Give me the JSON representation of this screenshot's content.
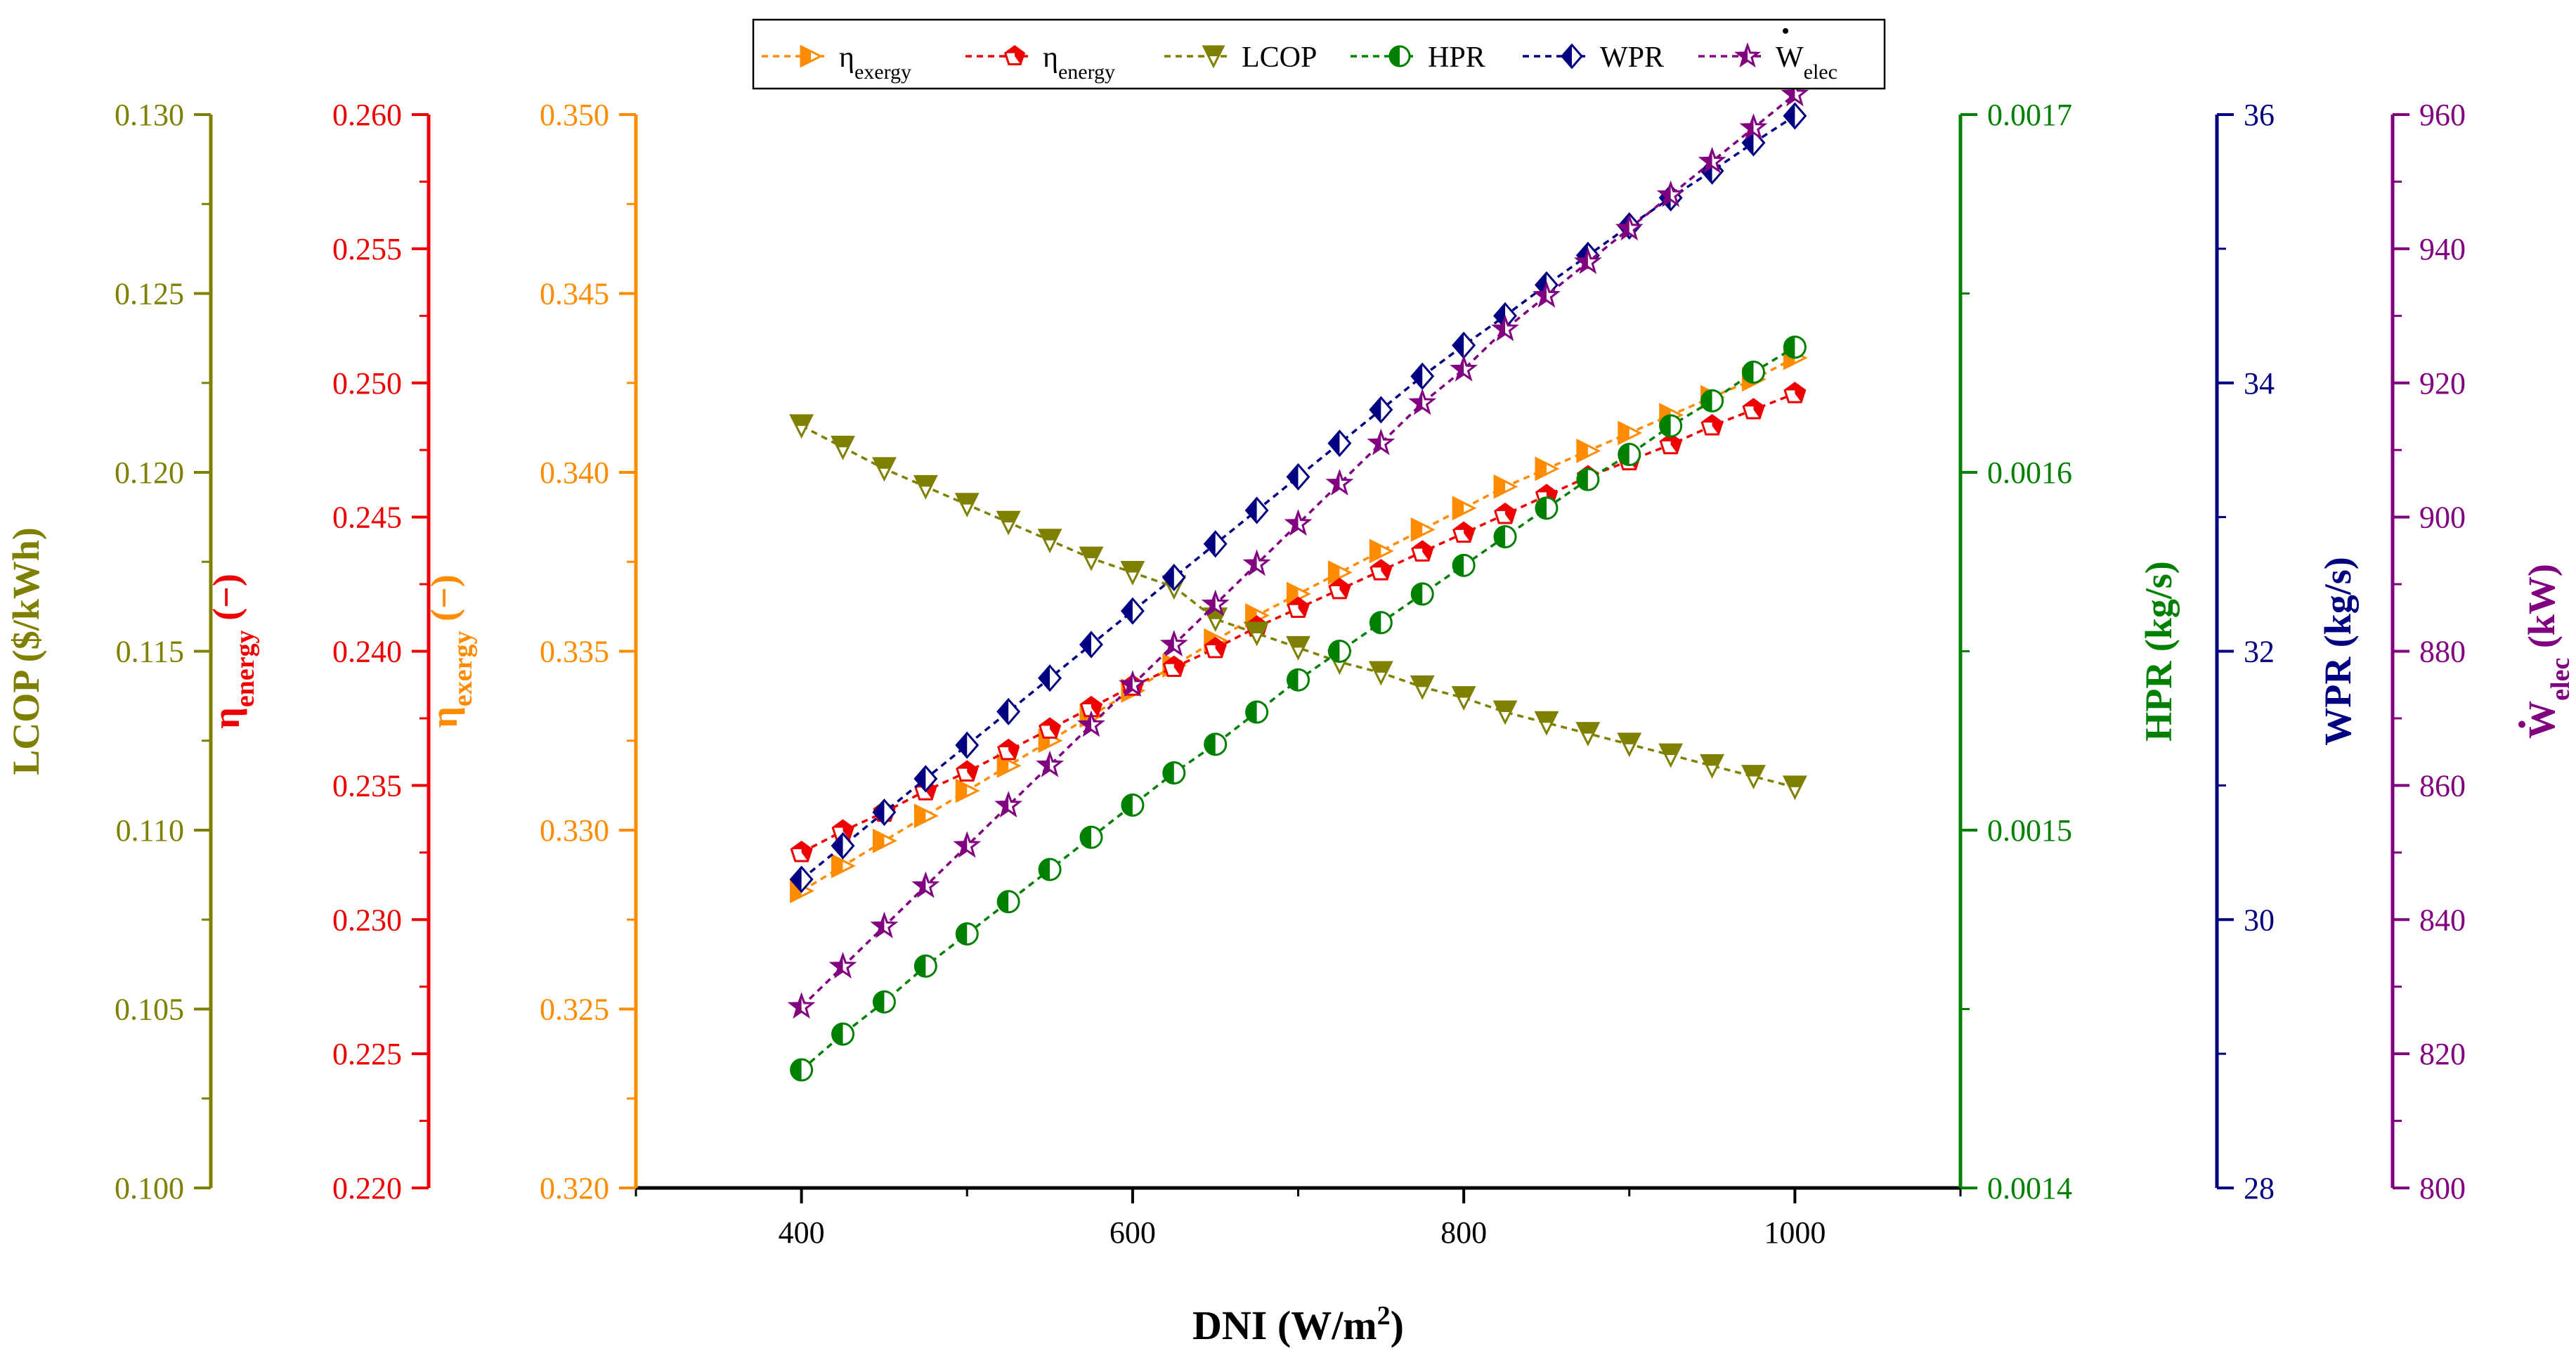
{
  "chart_data": {
    "type": "line",
    "x": [
      400,
      425,
      450,
      475,
      500,
      525,
      550,
      575,
      600,
      625,
      650,
      675,
      700,
      725,
      750,
      775,
      800,
      825,
      850,
      875,
      900,
      925,
      950,
      975,
      1000
    ],
    "xlim": [
      300,
      1100
    ],
    "x_ticks": [
      "400",
      "600",
      "800",
      "1000"
    ],
    "xlabel": {
      "main": "DNI (W/m",
      "sup": "2",
      "end": ")"
    },
    "grid": false,
    "legend_position": "top",
    "axes": [
      {
        "id": "lcop",
        "color": "#808000",
        "side": "left",
        "label": {
          "main": "LCOP ($/kWh)",
          "sub": ""
        },
        "ylim": [
          0.1,
          0.13
        ],
        "ticks": [
          "0.100",
          "0.105",
          "0.110",
          "0.115",
          "0.120",
          "0.125",
          "0.130"
        ]
      },
      {
        "id": "energy",
        "color": "#ee0000",
        "side": "left",
        "label": {
          "main": "η",
          "sub": "energy",
          "end": " (−)"
        },
        "ylim": [
          0.22,
          0.26
        ],
        "ticks": [
          "0.220",
          "0.225",
          "0.230",
          "0.235",
          "0.240",
          "0.245",
          "0.250",
          "0.255",
          "0.260"
        ]
      },
      {
        "id": "exergy",
        "color": "#ff8c00",
        "side": "left",
        "label": {
          "main": "η",
          "sub": "exergy",
          "end": " (−)"
        },
        "ylim": [
          0.32,
          0.35
        ],
        "ticks": [
          "0.320",
          "0.325",
          "0.330",
          "0.335",
          "0.340",
          "0.345",
          "0.350"
        ]
      },
      {
        "id": "hpr",
        "color": "#008000",
        "side": "right",
        "label": {
          "main": "HPR (kg/s)",
          "sub": ""
        },
        "ylim": [
          0.0014,
          0.0017
        ],
        "ticks": [
          "0.0014",
          "0.0015",
          "0.0016",
          "0.0017"
        ]
      },
      {
        "id": "wpr",
        "color": "#000080",
        "side": "right",
        "label": {
          "main": "WPR (kg/s)",
          "sub": ""
        },
        "ylim": [
          28,
          36
        ],
        "ticks": [
          "28",
          "30",
          "32",
          "34",
          "36"
        ]
      },
      {
        "id": "welec",
        "color": "#800080",
        "side": "right",
        "label": {
          "main": "W",
          "sub": "elec",
          "end": " (kW)",
          "dot": true
        },
        "ylim": [
          800,
          960
        ],
        "ticks": [
          "800",
          "820",
          "840",
          "860",
          "880",
          "900",
          "920",
          "940",
          "960"
        ]
      }
    ],
    "series": [
      {
        "name": "η",
        "name_sub": "exergy",
        "axis": "exergy",
        "marker": "triangle-right",
        "color": "#ff8c00",
        "values": [
          0.3283,
          0.329,
          0.3297,
          0.3304,
          0.3311,
          0.3318,
          0.3325,
          0.3332,
          0.3339,
          0.3346,
          0.3353,
          0.336,
          0.3366,
          0.3372,
          0.3378,
          0.3384,
          0.339,
          0.3396,
          0.3401,
          0.3406,
          0.3411,
          0.3416,
          0.3421,
          0.3426,
          0.3432
        ]
      },
      {
        "name": "η",
        "name_sub": "energy",
        "axis": "energy",
        "marker": "pentagon",
        "color": "#ee0000",
        "values": [
          0.2325,
          0.2333,
          0.234,
          0.2348,
          0.2355,
          0.2363,
          0.2371,
          0.2379,
          0.2387,
          0.2394,
          0.2401,
          0.2409,
          0.2416,
          0.2423,
          0.243,
          0.2437,
          0.2444,
          0.2451,
          0.2458,
          0.2465,
          0.2471,
          0.2477,
          0.2484,
          0.249,
          0.2496
        ]
      },
      {
        "name": "LCOP",
        "name_sub": "",
        "axis": "lcop",
        "marker": "triangle-down",
        "color": "#808000",
        "values": [
          0.1213,
          0.1207,
          0.1201,
          0.1196,
          0.1191,
          0.1186,
          0.1181,
          0.1176,
          0.1172,
          0.1168,
          0.1159,
          0.1155,
          0.1151,
          0.1147,
          0.1144,
          0.114,
          0.1137,
          0.1133,
          0.113,
          0.1127,
          0.1124,
          0.1121,
          0.1118,
          0.1115,
          0.1112
        ]
      },
      {
        "name": "HPR",
        "name_sub": "",
        "axis": "hpr",
        "marker": "circle-half",
        "color": "#008000",
        "values": [
          0.001433,
          0.001443,
          0.001452,
          0.001462,
          0.001471,
          0.00148,
          0.001489,
          0.001498,
          0.001507,
          0.001516,
          0.001524,
          0.001533,
          0.001542,
          0.00155,
          0.001558,
          0.001566,
          0.001574,
          0.001582,
          0.00159,
          0.001598,
          0.001605,
          0.001613,
          0.00162,
          0.001628,
          0.001635
        ]
      },
      {
        "name": "WPR",
        "name_sub": "",
        "axis": "wpr",
        "marker": "diamond-half",
        "color": "#000080",
        "values": [
          30.3,
          30.55,
          30.8,
          31.05,
          31.3,
          31.55,
          31.8,
          32.05,
          32.3,
          32.55,
          32.8,
          33.05,
          33.3,
          33.55,
          33.8,
          34.05,
          34.28,
          34.5,
          34.73,
          34.95,
          35.17,
          35.38,
          35.58,
          35.79,
          35.99
        ]
      },
      {
        "name": "W",
        "name_sub": "elec",
        "name_dot": true,
        "axis": "welec",
        "marker": "star",
        "color": "#800080",
        "values": [
          827,
          833,
          839,
          845,
          851,
          857,
          863,
          869,
          875,
          881,
          887,
          893,
          899,
          905,
          911,
          917,
          922,
          928,
          933,
          938,
          943,
          948,
          953,
          958,
          963
        ]
      }
    ]
  }
}
